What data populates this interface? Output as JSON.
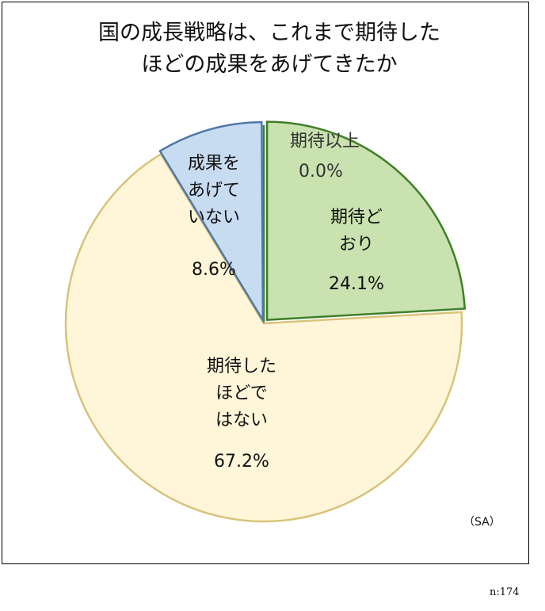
{
  "chart_data": {
    "type": "pie",
    "title": "国の成長戦略は、これまで期待した\nほどの成果をあげてきたか",
    "categories": [
      "期待以上",
      "期待ど\nおり",
      "期待した\nほどで\nはない",
      "成果を\nあげて\nいない"
    ],
    "values": [
      0.0,
      24.1,
      67.2,
      8.6
    ],
    "value_labels": [
      "0.0%",
      "24.1%",
      "67.2%",
      "8.6%"
    ],
    "colors": [
      "#b9d89a",
      "#c9e2b0",
      "#fff6da",
      "#c8dcf1"
    ],
    "note": "（SA）",
    "sample": "n:174"
  }
}
